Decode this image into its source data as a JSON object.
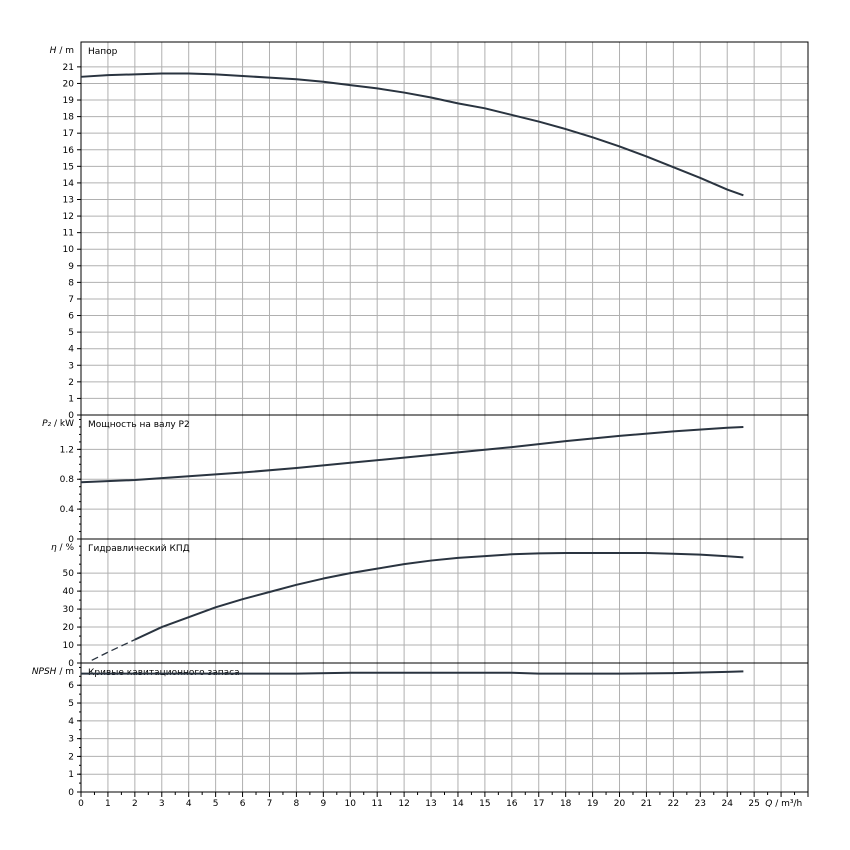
{
  "chart_data": {
    "type": "line",
    "x_axis": {
      "label_var": "Q",
      "label_unit": "m³/h",
      "min": 0,
      "max": 27,
      "ticks": [
        0,
        1,
        2,
        3,
        4,
        5,
        6,
        7,
        8,
        9,
        10,
        11,
        12,
        13,
        14,
        15,
        16,
        17,
        18,
        19,
        20,
        21,
        22,
        23,
        24,
        25
      ]
    },
    "panels": [
      {
        "id": "head",
        "title": "Напор",
        "ylabel_var": "H",
        "ylabel_unit": "m",
        "ylim": [
          0,
          22.5
        ],
        "yticks": [
          0,
          1,
          2,
          3,
          4,
          5,
          6,
          7,
          8,
          9,
          10,
          11,
          12,
          13,
          14,
          15,
          16,
          17,
          18,
          19,
          20,
          21
        ],
        "series": [
          {
            "x": [
              0,
              1,
              2,
              3,
              4,
              5,
              6,
              7,
              8,
              9,
              10,
              11,
              12,
              13,
              14,
              15,
              16,
              17,
              18,
              19,
              20,
              21,
              22,
              23,
              24,
              24.6
            ],
            "y": [
              20.4,
              20.5,
              20.55,
              20.6,
              20.6,
              20.55,
              20.45,
              20.35,
              20.25,
              20.1,
              19.9,
              19.7,
              19.45,
              19.15,
              18.8,
              18.5,
              18.1,
              17.7,
              17.25,
              16.75,
              16.2,
              15.6,
              14.95,
              14.3,
              13.6,
              13.25
            ]
          }
        ]
      },
      {
        "id": "power",
        "title": "Мощность на валу P2",
        "ylabel_var": "P₂",
        "ylabel_unit": "kW",
        "ylim": [
          0,
          1.66
        ],
        "yticks": [
          0,
          0.4,
          0.8,
          1.2
        ],
        "yticks_labels": [
          "0",
          "0.4",
          "0.8",
          "1.2"
        ],
        "minor_step": 0.1,
        "series": [
          {
            "x": [
              0,
              2,
              4,
              6,
              8,
              10,
              12,
              14,
              16,
              18,
              20,
              22,
              24,
              24.6
            ],
            "y": [
              0.76,
              0.79,
              0.84,
              0.89,
              0.95,
              1.02,
              1.09,
              1.16,
              1.23,
              1.31,
              1.38,
              1.44,
              1.49,
              1.5
            ]
          }
        ]
      },
      {
        "id": "efficiency",
        "title": "Гидравлический КПД",
        "ylabel_var": "η",
        "ylabel_unit": "%",
        "ylim": [
          0,
          69
        ],
        "yticks": [
          0,
          10,
          20,
          30,
          40,
          50
        ],
        "minor_step": 5,
        "dashed_until_x": 2,
        "series": [
          {
            "x": [
              0.4,
              1,
              2,
              3,
              4,
              5,
              6,
              7,
              8,
              9,
              10,
              11,
              12,
              13,
              14,
              15,
              16,
              17,
              18,
              19,
              20,
              21,
              22,
              23,
              24,
              24.6
            ],
            "y": [
              1.5,
              6,
              13,
              20,
              25.5,
              31,
              35.5,
              39.5,
              43.5,
              47,
              50,
              52.5,
              55,
              57,
              58.5,
              59.5,
              60.5,
              61,
              61.2,
              61.2,
              61.2,
              61.2,
              60.8,
              60.3,
              59.4,
              58.8
            ]
          }
        ]
      },
      {
        "id": "npsh",
        "title": "Кривые кавитационного запаса",
        "ylabel_var": "NPSH",
        "ylabel_unit": "m",
        "ylim": [
          0,
          7.25
        ],
        "yticks": [
          0,
          1,
          2,
          3,
          4,
          5,
          6
        ],
        "minor_step": 0.5,
        "series": [
          {
            "x": [
              0,
              2,
              4,
              6,
              8,
              10,
              12,
              14,
              16,
              17,
              18,
              20,
              22,
              24,
              24.6
            ],
            "y": [
              6.65,
              6.65,
              6.65,
              6.65,
              6.65,
              6.7,
              6.7,
              6.7,
              6.7,
              6.65,
              6.65,
              6.65,
              6.68,
              6.75,
              6.78
            ]
          }
        ]
      }
    ]
  }
}
